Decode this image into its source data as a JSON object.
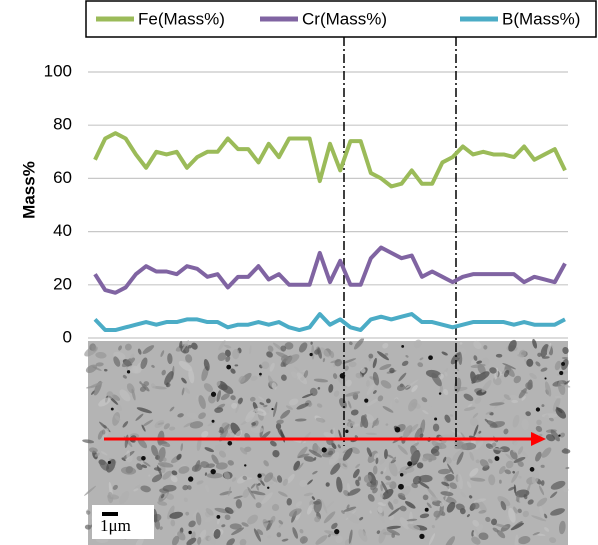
{
  "chart_data": {
    "type": "line",
    "y_label": "Mass%",
    "ylim": [
      0,
      100
    ],
    "yticks": [
      0,
      20,
      40,
      60,
      80,
      100
    ],
    "grid": true,
    "series": [
      {
        "name": "Fe(Mass%)",
        "color": "#9bbb59",
        "values": [
          67,
          75,
          77,
          75,
          69,
          64,
          70,
          69,
          70,
          64,
          68,
          70,
          70,
          75,
          71,
          71,
          66,
          73,
          68,
          75,
          75,
          75,
          59,
          73,
          63,
          74,
          74,
          62,
          60,
          57,
          58,
          63,
          58,
          58,
          66,
          68,
          72,
          69,
          70,
          69,
          69,
          68,
          72,
          67,
          69,
          71,
          63
        ]
      },
      {
        "name": "Cr(Mass%)",
        "color": "#8064a2",
        "values": [
          24,
          18,
          17,
          19,
          24,
          27,
          25,
          25,
          24,
          27,
          26,
          23,
          24,
          19,
          23,
          23,
          27,
          22,
          24,
          20,
          20,
          20,
          32,
          21,
          29,
          20,
          20,
          30,
          34,
          32,
          30,
          31,
          23,
          25,
          23,
          21,
          23,
          24,
          24,
          24,
          24,
          24,
          21,
          23,
          22,
          21,
          28
        ]
      },
      {
        "name": "B(Mass%)",
        "color": "#4bacc6",
        "values": [
          7,
          3,
          3,
          4,
          5,
          6,
          5,
          6,
          6,
          7,
          7,
          6,
          6,
          4,
          5,
          5,
          6,
          5,
          6,
          4,
          3,
          4,
          9,
          5,
          7,
          4,
          3,
          7,
          8,
          7,
          8,
          9,
          6,
          6,
          5,
          4,
          5,
          6,
          6,
          6,
          6,
          5,
          6,
          5,
          5,
          5,
          7
        ]
      }
    ]
  },
  "image": {
    "scale_bar_label": "1μm"
  }
}
